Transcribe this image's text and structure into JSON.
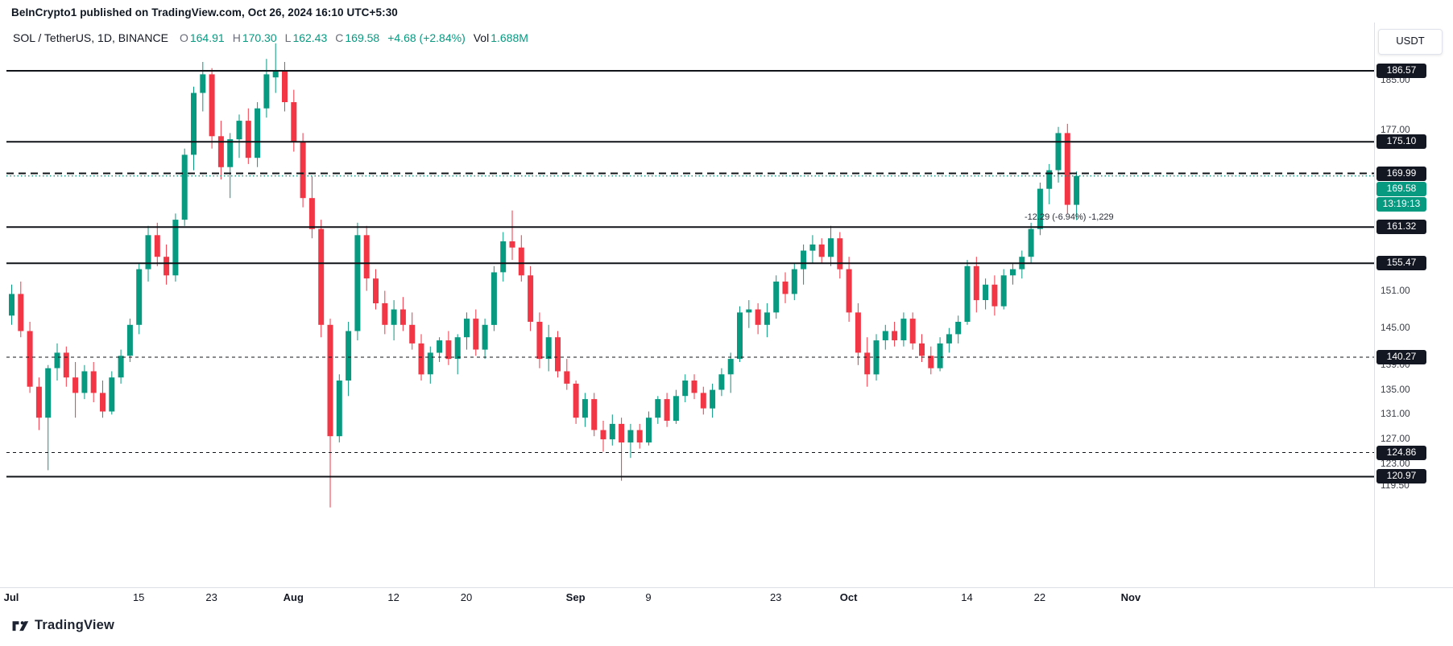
{
  "attribution": "BeInCrypto1 published on TradingView.com, Oct 26, 2024 16:10 UTC+5:30",
  "header": {
    "symbol": "SOL / TetherUS, 1D, BINANCE",
    "ohlc": [
      {
        "k": "O",
        "v": "164.91"
      },
      {
        "k": "H",
        "v": "170.30"
      },
      {
        "k": "L",
        "v": "162.43"
      },
      {
        "k": "C",
        "v": "169.58"
      }
    ],
    "change": "+4.68 (+2.84%)",
    "vol_label": "Vol",
    "vol_value": "1.688M",
    "currency_button": "USDT"
  },
  "footer": {
    "logo_text": "TradingView"
  },
  "colors": {
    "up": "#089981",
    "down": "#f23645",
    "line": "#101418",
    "accent": "#089981"
  },
  "chart_data": {
    "type": "candlestick",
    "symbol": "SOL / TetherUS",
    "interval": "1D",
    "exchange": "BINANCE",
    "x_axis_note": "daily candles, Jul 1 - Oct 26, 2024",
    "ylim": [
      116,
      192
    ],
    "current": {
      "price": 169.58,
      "countdown": "13:19:13"
    },
    "measurement_label": "-12.29 (-6.94%) -1,229",
    "levels": [
      {
        "price": 186.57,
        "style": "solid"
      },
      {
        "price": 175.1,
        "style": "solid"
      },
      {
        "price": 169.99,
        "style": "dashed-bold"
      },
      {
        "price": 161.32,
        "style": "solid"
      },
      {
        "price": 155.47,
        "style": "solid"
      },
      {
        "price": 140.27,
        "style": "dashed"
      },
      {
        "price": 124.86,
        "style": "dashed"
      },
      {
        "price": 120.97,
        "style": "solid"
      }
    ],
    "price_ticks": [
      185.0,
      177.0,
      151.0,
      145.0,
      139.0,
      135.0,
      131.0,
      127.0,
      123.0,
      119.5
    ],
    "time_labels": [
      {
        "label": "Jul",
        "day": 0,
        "major": true
      },
      {
        "label": "15",
        "day": 14,
        "major": false
      },
      {
        "label": "23",
        "day": 22,
        "major": false
      },
      {
        "label": "Aug",
        "day": 31,
        "major": true
      },
      {
        "label": "12",
        "day": 42,
        "major": false
      },
      {
        "label": "20",
        "day": 50,
        "major": false
      },
      {
        "label": "Sep",
        "day": 62,
        "major": true
      },
      {
        "label": "9",
        "day": 70,
        "major": false
      },
      {
        "label": "23",
        "day": 84,
        "major": false
      },
      {
        "label": "Oct",
        "day": 92,
        "major": true
      },
      {
        "label": "14",
        "day": 105,
        "major": false
      },
      {
        "label": "22",
        "day": 113,
        "major": false
      },
      {
        "label": "Nov",
        "day": 123,
        "major": true
      }
    ],
    "candles": [
      [
        147.0,
        152.0,
        145.5,
        150.5
      ],
      [
        150.5,
        152.5,
        143.5,
        144.5
      ],
      [
        144.5,
        146.0,
        134.5,
        135.5
      ],
      [
        135.5,
        137.0,
        128.5,
        130.5
      ],
      [
        130.5,
        139.0,
        122.0,
        138.5
      ],
      [
        138.5,
        142.5,
        136.5,
        141.0
      ],
      [
        141.0,
        142.0,
        135.5,
        137.0
      ],
      [
        137.0,
        139.5,
        130.5,
        134.5
      ],
      [
        134.5,
        139.0,
        133.5,
        138.0
      ],
      [
        138.0,
        139.5,
        133.0,
        134.5
      ],
      [
        134.5,
        136.5,
        130.5,
        131.5
      ],
      [
        131.5,
        138.0,
        131.0,
        137.0
      ],
      [
        137.0,
        141.5,
        136.0,
        140.5
      ],
      [
        140.5,
        146.5,
        139.5,
        145.5
      ],
      [
        145.5,
        155.5,
        144.0,
        154.5
      ],
      [
        154.5,
        161.5,
        152.5,
        160.0
      ],
      [
        160.0,
        162.0,
        155.0,
        156.5
      ],
      [
        156.5,
        158.5,
        152.0,
        153.5
      ],
      [
        153.5,
        163.5,
        152.5,
        162.5
      ],
      [
        162.5,
        174.0,
        161.5,
        173.0
      ],
      [
        173.0,
        184.0,
        170.5,
        183.0
      ],
      [
        183.0,
        188.0,
        180.0,
        186.0
      ],
      [
        186.0,
        187.0,
        174.0,
        176.0
      ],
      [
        176.0,
        178.5,
        169.0,
        171.0
      ],
      [
        171.0,
        176.5,
        166.0,
        175.5
      ],
      [
        175.5,
        179.5,
        172.5,
        178.5
      ],
      [
        178.5,
        180.5,
        171.5,
        172.5
      ],
      [
        172.5,
        181.5,
        171.0,
        180.5
      ],
      [
        180.5,
        188.5,
        179.0,
        186.0
      ],
      [
        185.5,
        191.0,
        183.0,
        186.5
      ],
      [
        186.5,
        188.0,
        180.0,
        181.5
      ],
      [
        181.5,
        183.5,
        173.5,
        175.0
      ],
      [
        175.0,
        176.5,
        164.5,
        166.0
      ],
      [
        166.0,
        169.5,
        159.5,
        161.0
      ],
      [
        161.0,
        162.5,
        143.5,
        145.5
      ],
      [
        145.5,
        146.5,
        116.0,
        127.5
      ],
      [
        127.5,
        137.5,
        126.5,
        136.5
      ],
      [
        136.5,
        146.0,
        134.0,
        144.5
      ],
      [
        144.5,
        162.0,
        143.0,
        160.0
      ],
      [
        160.0,
        161.5,
        151.0,
        153.0
      ],
      [
        153.0,
        154.5,
        148.0,
        149.0
      ],
      [
        149.0,
        151.0,
        144.0,
        145.5
      ],
      [
        145.5,
        149.5,
        143.0,
        148.0
      ],
      [
        148.0,
        150.0,
        144.5,
        145.5
      ],
      [
        145.5,
        147.5,
        141.5,
        142.5
      ],
      [
        142.5,
        144.0,
        136.5,
        137.5
      ],
      [
        137.5,
        142.0,
        136.0,
        141.0
      ],
      [
        141.0,
        143.5,
        139.5,
        143.0
      ],
      [
        143.0,
        144.5,
        139.0,
        140.0
      ],
      [
        140.0,
        144.0,
        137.5,
        143.5
      ],
      [
        143.5,
        147.5,
        141.5,
        146.5
      ],
      [
        146.5,
        148.0,
        140.5,
        141.5
      ],
      [
        141.5,
        146.5,
        140.0,
        145.5
      ],
      [
        145.5,
        155.0,
        144.5,
        154.0
      ],
      [
        154.0,
        160.5,
        152.5,
        159.0
      ],
      [
        159.0,
        164.0,
        156.0,
        158.0
      ],
      [
        158.0,
        160.0,
        152.5,
        153.5
      ],
      [
        153.5,
        155.0,
        144.5,
        146.0
      ],
      [
        146.0,
        147.5,
        138.5,
        140.0
      ],
      [
        140.0,
        145.5,
        138.0,
        143.5
      ],
      [
        143.5,
        144.5,
        137.0,
        138.0
      ],
      [
        138.0,
        140.0,
        135.0,
        136.0
      ],
      [
        136.0,
        136.5,
        129.5,
        130.5
      ],
      [
        130.5,
        134.5,
        129.0,
        133.5
      ],
      [
        133.5,
        134.5,
        127.5,
        128.5
      ],
      [
        128.5,
        130.0,
        125.0,
        127.0
      ],
      [
        127.0,
        131.0,
        126.0,
        129.5
      ],
      [
        129.5,
        130.5,
        120.3,
        126.5
      ],
      [
        126.5,
        129.5,
        124.0,
        128.5
      ],
      [
        128.5,
        129.5,
        125.5,
        126.5
      ],
      [
        126.5,
        131.5,
        126.0,
        130.5
      ],
      [
        130.5,
        134.0,
        129.5,
        133.5
      ],
      [
        133.5,
        134.5,
        129.0,
        130.0
      ],
      [
        130.0,
        135.0,
        129.5,
        134.0
      ],
      [
        134.0,
        137.5,
        133.0,
        136.5
      ],
      [
        136.5,
        137.5,
        133.5,
        134.5
      ],
      [
        134.5,
        135.5,
        131.0,
        132.0
      ],
      [
        132.0,
        136.0,
        130.5,
        135.0
      ],
      [
        135.0,
        138.5,
        134.0,
        137.5
      ],
      [
        137.5,
        141.0,
        134.5,
        140.0
      ],
      [
        140.0,
        148.5,
        139.5,
        147.5
      ],
      [
        147.5,
        149.5,
        145.0,
        148.0
      ],
      [
        148.0,
        149.0,
        144.0,
        145.5
      ],
      [
        145.5,
        149.0,
        143.5,
        147.5
      ],
      [
        147.5,
        153.5,
        146.5,
        152.5
      ],
      [
        152.5,
        154.0,
        149.0,
        150.5
      ],
      [
        150.5,
        155.5,
        149.5,
        154.5
      ],
      [
        154.5,
        158.5,
        152.0,
        157.5
      ],
      [
        157.5,
        160.0,
        155.5,
        158.5
      ],
      [
        158.5,
        159.5,
        155.5,
        156.5
      ],
      [
        156.5,
        161.5,
        155.0,
        159.5
      ],
      [
        159.5,
        160.5,
        153.0,
        154.5
      ],
      [
        154.5,
        156.5,
        146.0,
        147.5
      ],
      [
        147.5,
        149.0,
        139.0,
        141.0
      ],
      [
        141.0,
        143.5,
        135.5,
        137.5
      ],
      [
        137.5,
        144.0,
        136.5,
        143.0
      ],
      [
        143.0,
        145.5,
        141.5,
        144.5
      ],
      [
        144.5,
        146.0,
        142.0,
        143.0
      ],
      [
        143.0,
        147.5,
        142.0,
        146.5
      ],
      [
        146.5,
        147.5,
        141.5,
        142.5
      ],
      [
        142.5,
        144.0,
        139.5,
        140.5
      ],
      [
        140.5,
        142.0,
        137.5,
        138.5
      ],
      [
        138.5,
        143.5,
        138.0,
        142.5
      ],
      [
        142.5,
        145.0,
        141.0,
        144.0
      ],
      [
        144.0,
        147.0,
        142.5,
        146.0
      ],
      [
        146.0,
        156.0,
        145.5,
        155.0
      ],
      [
        155.0,
        156.5,
        147.5,
        149.5
      ],
      [
        149.5,
        153.0,
        148.0,
        152.0
      ],
      [
        152.0,
        153.5,
        147.0,
        148.5
      ],
      [
        148.5,
        154.5,
        148.0,
        153.5
      ],
      [
        153.5,
        155.5,
        152.0,
        154.5
      ],
      [
        154.5,
        157.5,
        153.0,
        156.5
      ],
      [
        156.5,
        162.0,
        155.5,
        161.0
      ],
      [
        161.0,
        168.5,
        160.0,
        167.5
      ],
      [
        167.5,
        171.5,
        165.0,
        170.5
      ],
      [
        170.5,
        177.5,
        168.5,
        176.5
      ],
      [
        176.5,
        178.0,
        163.5,
        164.9
      ],
      [
        164.91,
        170.3,
        162.43,
        169.58
      ]
    ]
  }
}
